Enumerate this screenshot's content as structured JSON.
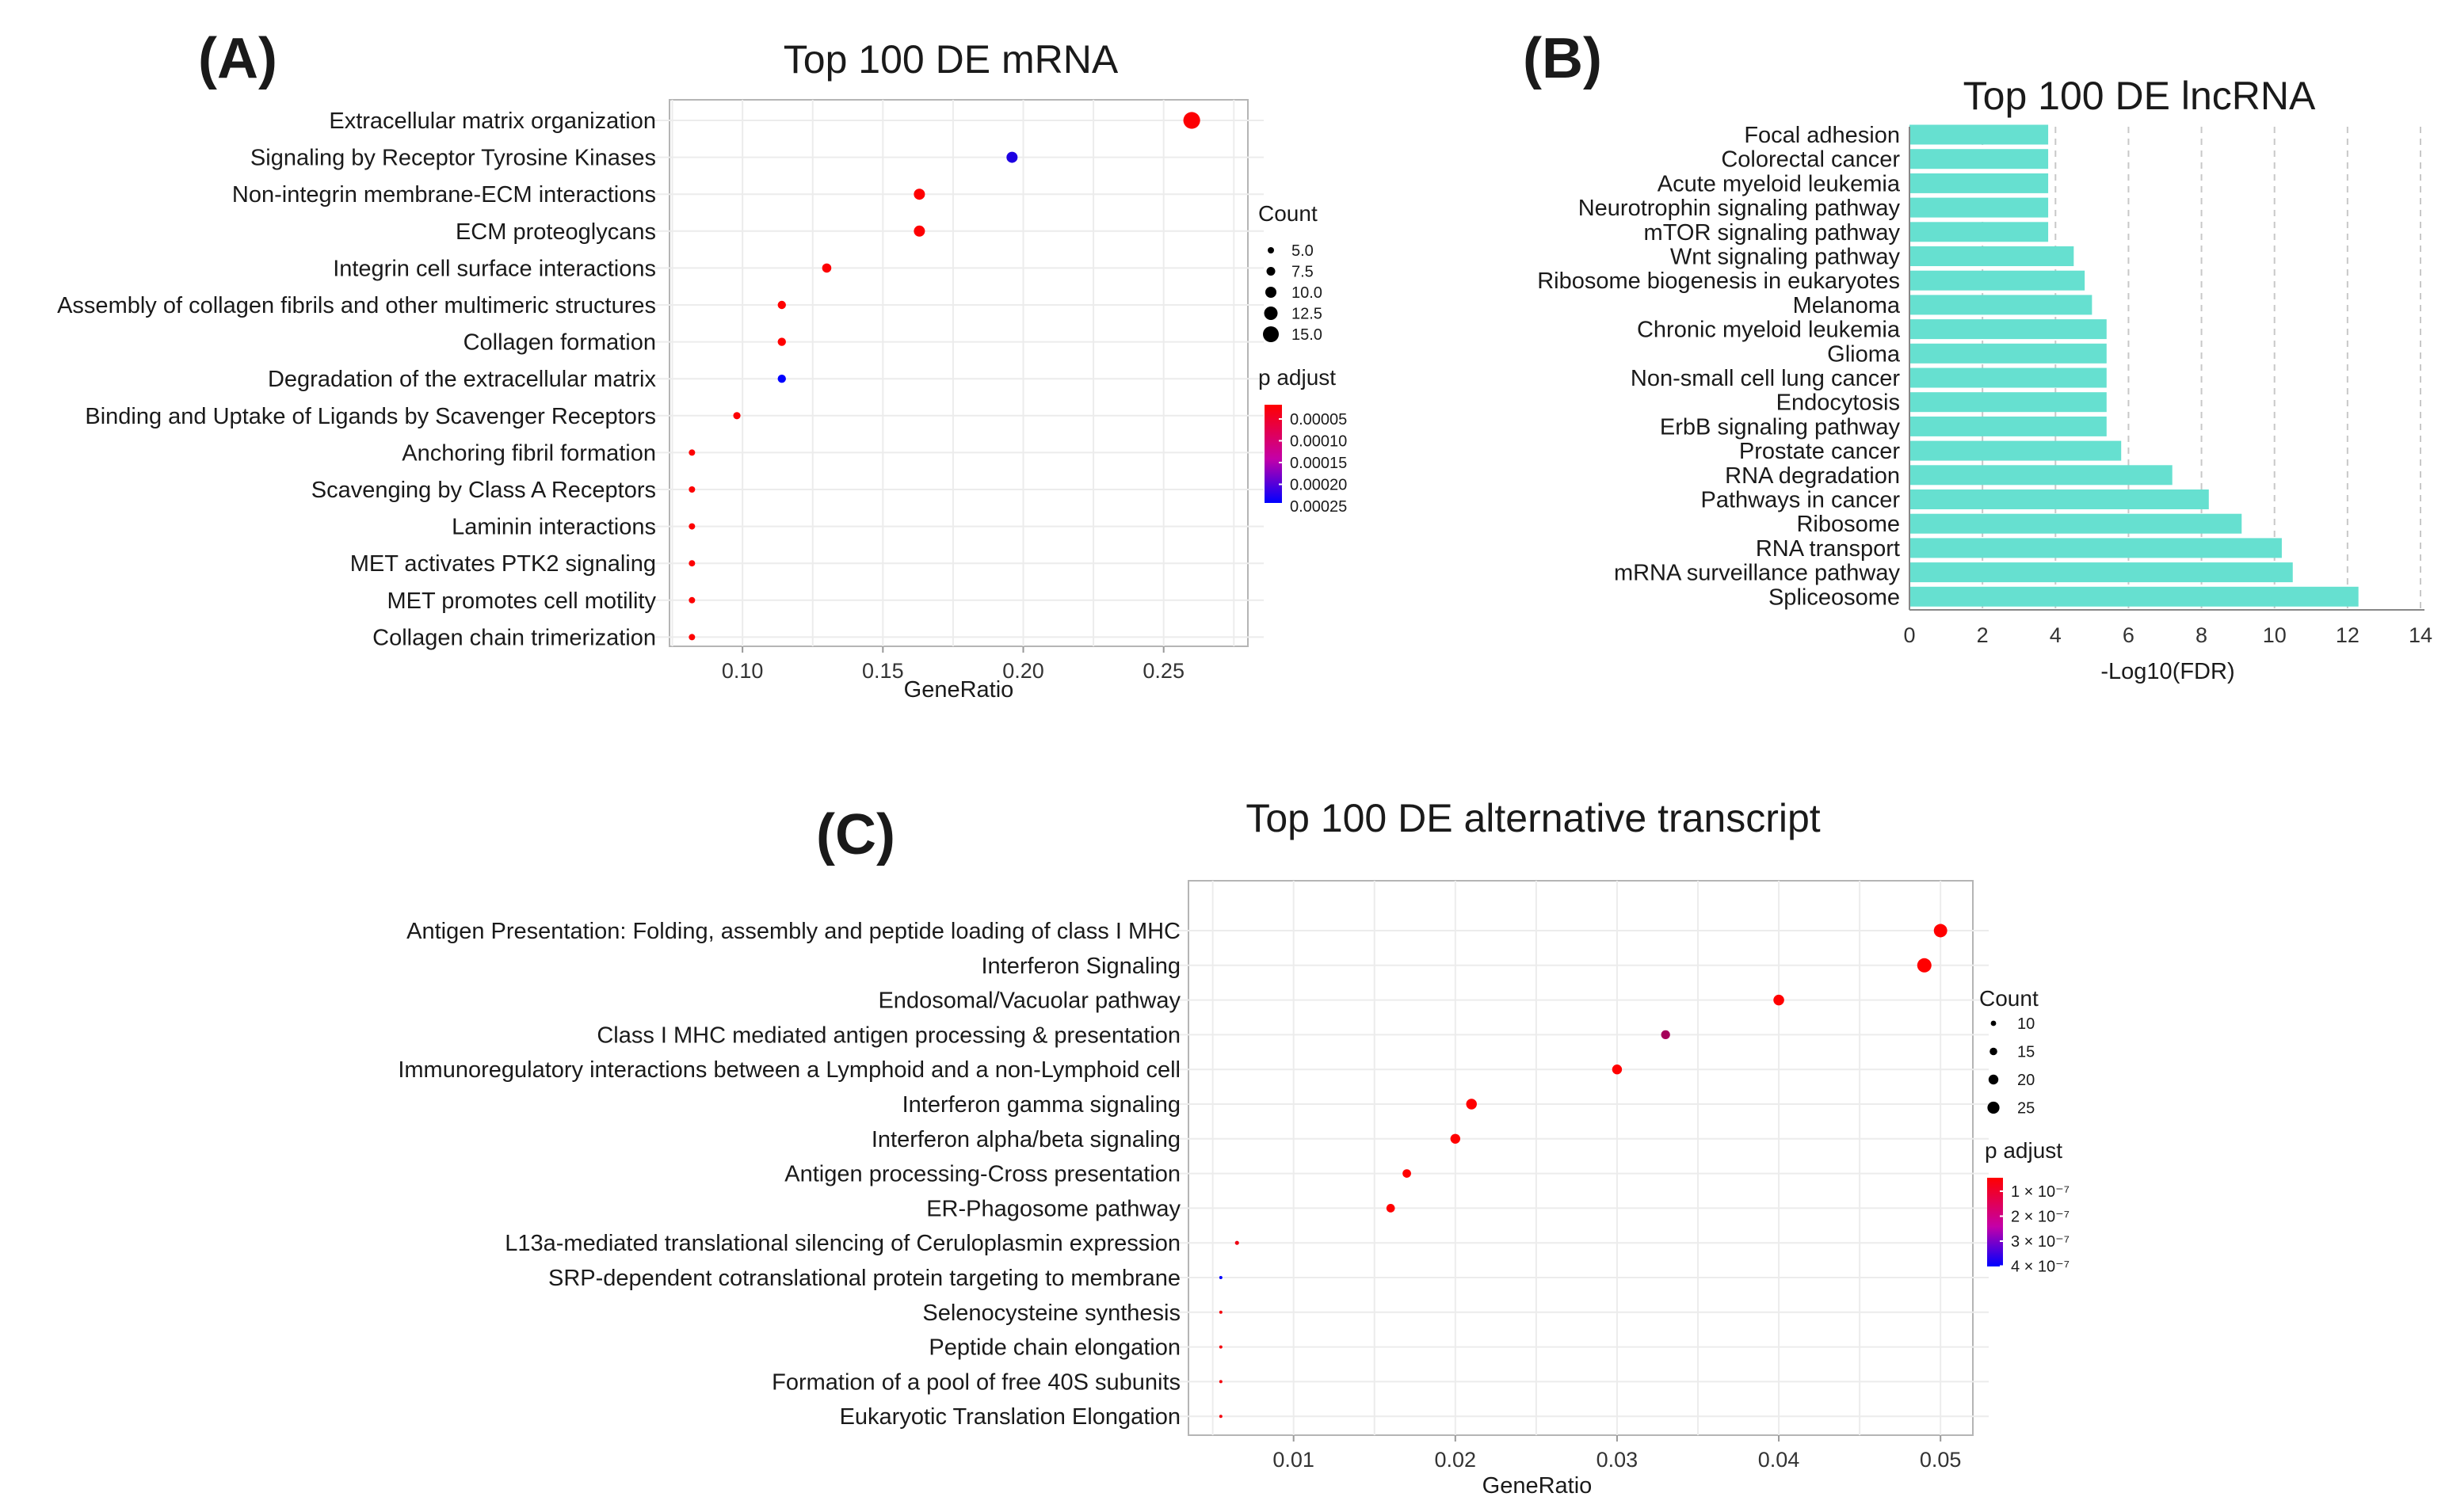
{
  "chart_data": [
    {
      "panel": "(A)",
      "type": "scatter",
      "title": "Top 100 DE mRNA",
      "xlabel": "GeneRatio",
      "ylabel": "",
      "xlim": [
        0.074,
        0.28
      ],
      "xticks": [
        0.1,
        0.15,
        0.2,
        0.25
      ],
      "xtick_labels": [
        "0.10",
        "0.15",
        "0.20",
        "0.25"
      ],
      "grid": true,
      "categories": [
        "Extracellular matrix organization",
        "Signaling by Receptor Tyrosine Kinases",
        "Non-integrin membrane-ECM interactions",
        "ECM proteoglycans",
        "Integrin cell surface interactions",
        "Assembly of collagen fibrils and other multimeric structures",
        "Collagen formation",
        "Degradation of the extracellular matrix",
        "Binding and Uptake of Ligands by Scavenger Receptors",
        "Anchoring fibril formation",
        "Scavenging by Class A Receptors",
        "Laminin interactions",
        "MET activates PTK2 signaling",
        "MET promotes cell motility",
        "Collagen chain trimerization"
      ],
      "x": [
        0.26,
        0.196,
        0.163,
        0.163,
        0.13,
        0.114,
        0.114,
        0.114,
        0.098,
        0.082,
        0.082,
        0.082,
        0.082,
        0.082,
        0.082
      ],
      "count": [
        16,
        10,
        10,
        10,
        8,
        7,
        7,
        7,
        6,
        5,
        5,
        5,
        5,
        5,
        5
      ],
      "p_adjust": [
        5e-06,
        0.00024,
        3e-06,
        4e-06,
        4e-06,
        2e-06,
        2e-06,
        0.00027,
        5e-06,
        4e-06,
        4e-06,
        4e-06,
        4e-06,
        4e-06,
        4e-06
      ],
      "legend": {
        "size_title": "Count",
        "size_values": [
          5.0,
          7.5,
          10.0,
          12.5,
          15.0
        ],
        "size_labels": [
          "5.0",
          "7.5",
          "10.0",
          "12.5",
          "15.0"
        ],
        "color_title": "p adjust",
        "color_labels": [
          "0.00005",
          "0.00010",
          "0.00015",
          "0.00020",
          "0.00025"
        ],
        "color_low": "#ff0000",
        "color_high": "#0000ff"
      }
    },
    {
      "panel": "(B)",
      "type": "bar",
      "orientation": "horizontal",
      "title": "Top 100 DE lncRNA",
      "xlabel": "-Log10(FDR)",
      "ylabel": "",
      "xlim": [
        0,
        14
      ],
      "xticks": [
        0,
        2,
        4,
        6,
        8,
        10,
        12,
        14
      ],
      "xtick_labels": [
        "0",
        "2",
        "4",
        "6",
        "8",
        "10",
        "12",
        "14"
      ],
      "bar_color": "#66e0d0",
      "categories": [
        "Focal adhesion",
        "Colorectal cancer",
        "Acute myeloid leukemia",
        "Neurotrophin signaling pathway",
        "mTOR signaling pathway",
        "Wnt signaling pathway",
        "Ribosome biogenesis in eukaryotes",
        "Melanoma",
        "Chronic myeloid leukemia",
        "Glioma",
        "Non-small cell lung cancer",
        "Endocytosis",
        "ErbB signaling pathway",
        "Prostate cancer",
        "RNA degradation",
        "Pathways in cancer",
        "Ribosome",
        "RNA transport",
        "mRNA surveillance pathway",
        "Spliceosome"
      ],
      "values": [
        3.8,
        3.8,
        3.8,
        3.8,
        3.8,
        4.5,
        4.8,
        5.0,
        5.4,
        5.4,
        5.4,
        5.4,
        5.4,
        5.8,
        7.2,
        8.2,
        9.1,
        10.2,
        10.5,
        12.3
      ]
    },
    {
      "panel": "(C)",
      "type": "scatter",
      "title": "Top 100 DE alternative transcript",
      "xlabel": "GeneRatio",
      "ylabel": "",
      "xlim": [
        0.0035,
        0.052
      ],
      "xticks": [
        0.01,
        0.02,
        0.03,
        0.04,
        0.05
      ],
      "xtick_labels": [
        "0.01",
        "0.02",
        "0.03",
        "0.04",
        "0.05"
      ],
      "grid": true,
      "categories": [
        "Antigen Presentation: Folding, assembly and peptide loading of class I MHC",
        "Interferon Signaling",
        "Endosomal/Vacuolar pathway",
        "Class I MHC mediated antigen processing & presentation",
        "Immunoregulatory interactions between a Lymphoid and a non-Lymphoid cell",
        "Interferon gamma signaling",
        "Interferon alpha/beta signaling",
        "Antigen processing-Cross presentation",
        "ER-Phagosome pathway",
        "L13a-mediated translational silencing of Ceruloplasmin expression",
        "SRP-dependent cotranslational protein targeting to membrane",
        "Selenocysteine synthesis",
        "Peptide chain elongation",
        "Formation of a pool of free 40S subunits",
        "Eukaryotic Translation Elongation"
      ],
      "x": [
        0.05,
        0.049,
        0.04,
        0.033,
        0.03,
        0.021,
        0.02,
        0.017,
        0.016,
        0.0065,
        0.0055,
        0.0055,
        0.0055,
        0.0055,
        0.0055
      ],
      "count": [
        28,
        30,
        22,
        18,
        20,
        22,
        20,
        17,
        17,
        7,
        5,
        5,
        5,
        5,
        5
      ],
      "p_adjust": [
        2e-09,
        2e-09,
        2e-09,
        1.5e-07,
        2e-09,
        2e-09,
        2e-09,
        2e-09,
        2e-09,
        3e-08,
        4.2e-07,
        2e-08,
        2e-08,
        2e-08,
        2e-08
      ],
      "legend": {
        "size_title": "Count",
        "size_values": [
          10,
          15,
          20,
          25
        ],
        "size_labels": [
          "10",
          "15",
          "20",
          "25"
        ],
        "color_title": "p adjust",
        "color_labels": [
          "1 × 10⁻⁷",
          "2 × 10⁻⁷",
          "3 × 10⁻⁷",
          "4 × 10⁻⁷"
        ],
        "color_low": "#ff0000",
        "color_high": "#0000ff"
      }
    }
  ]
}
